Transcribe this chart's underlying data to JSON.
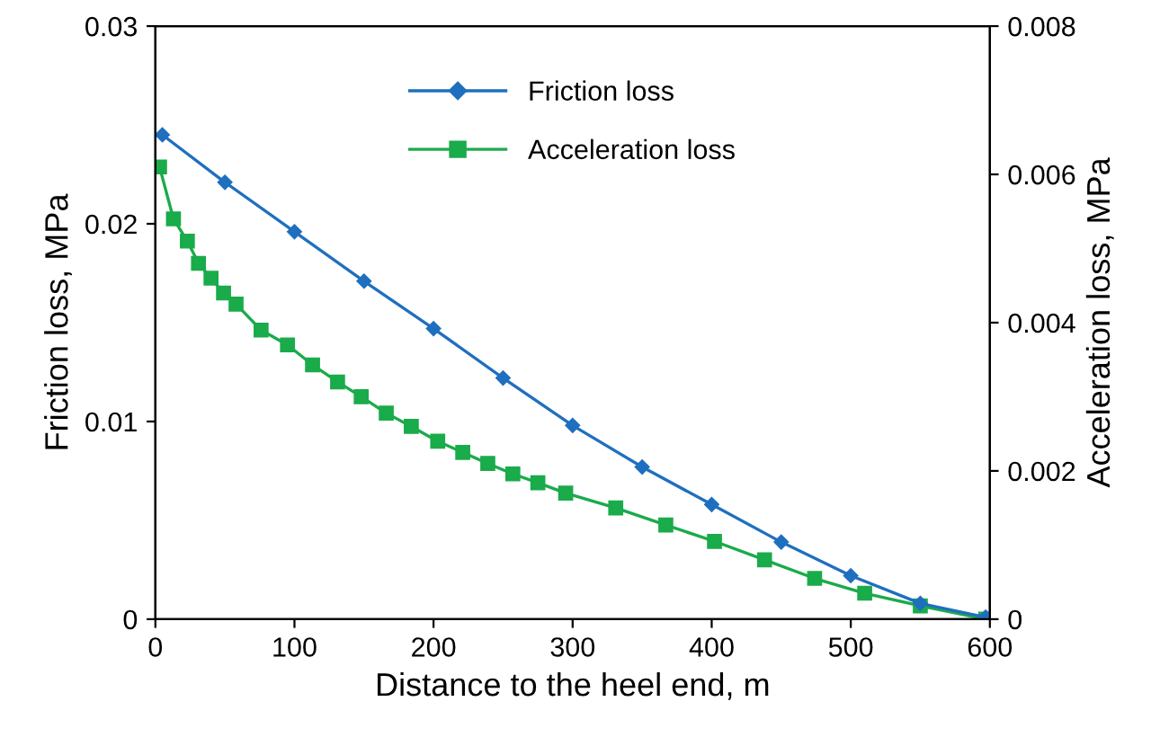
{
  "chart_data": {
    "type": "line",
    "xlabel": "Distance to the heel end, m",
    "ylabel": "Friction loss, MPa",
    "y2label": "Acceleration loss, MPa",
    "series": [
      {
        "name": "Friction loss",
        "color": "#1f6fbf",
        "marker": "diamond",
        "x": [
          5,
          50,
          100,
          150,
          200,
          250,
          300,
          350,
          400,
          450,
          500,
          550,
          597
        ],
        "values": [
          0.0245,
          0.0221,
          0.0196,
          0.0171,
          0.0147,
          0.0122,
          0.0098,
          0.0077,
          0.0058,
          0.0039,
          0.0022,
          0.0008,
          0.0001
        ]
      },
      {
        "name": "Acceleration loss",
        "color": "#1aab4b",
        "marker": "square",
        "axis": "y2",
        "x": [
          3,
          13,
          23,
          31,
          40,
          49,
          58,
          76,
          95,
          113,
          131,
          148,
          166,
          184,
          203,
          221,
          239,
          257,
          275,
          295,
          331,
          367,
          402,
          438,
          474,
          510,
          550,
          597
        ],
        "values": [
          0.0061,
          0.0054,
          0.0051,
          0.0048,
          0.0046,
          0.0044,
          0.00425,
          0.0039,
          0.0037,
          0.00343,
          0.0032,
          0.003,
          0.00278,
          0.0026,
          0.0024,
          0.00225,
          0.0021,
          0.00196,
          0.00184,
          0.0017,
          0.0015,
          0.00127,
          0.00105,
          0.0008,
          0.00055,
          0.00035,
          0.00018,
          0.0
        ]
      }
    ],
    "xlim": [
      0,
      600
    ],
    "xticks": [
      0,
      100,
      200,
      300,
      400,
      500,
      600
    ],
    "ylim": [
      0,
      0.03
    ],
    "yticks": [
      0,
      0.01,
      0.02,
      0.03
    ],
    "y2lim": [
      0,
      0.008
    ],
    "y2ticks": [
      0,
      0.002,
      0.004,
      0.006,
      0.008
    ],
    "legend": "top",
    "grid": false
  }
}
